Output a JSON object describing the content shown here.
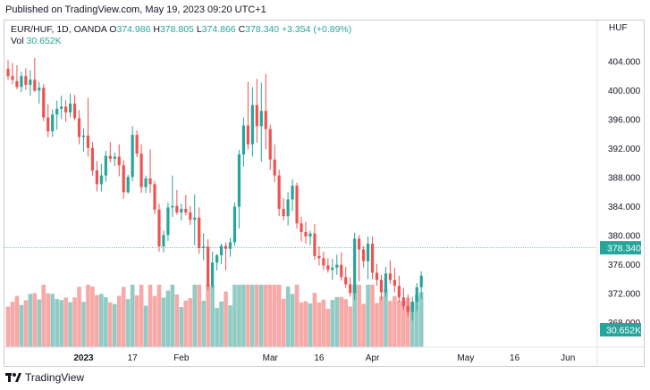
{
  "header": {
    "published": "Published on TradingView.com, May 19, 2023 09:20 UTC+1"
  },
  "legend": {
    "symbol": "EUR/HUF, 1D, OANDA",
    "o_label": "O",
    "o_value": "374.986",
    "h_label": "H",
    "h_value": "378.805",
    "l_label": "L",
    "l_value": "374.866",
    "c_label": "C",
    "c_value": "378.340",
    "change": "+3.354 (+0.89%)",
    "vol_label": "Vol",
    "vol_value": "30.652K"
  },
  "footer": {
    "brand": "TradingView"
  },
  "colors": {
    "up": "#26a69a",
    "down": "#ef5350",
    "vol_up": "#91cbc4",
    "vol_down": "#f6a9a7",
    "price_line": "#26a69a"
  },
  "chart_data": {
    "type": "candlestick",
    "currency_label": "HUF",
    "y_ticks": [
      "404.000",
      "400.000",
      "396.000",
      "392.000",
      "388.000",
      "384.000",
      "380.000",
      "376.000",
      "372.000",
      "368.000"
    ],
    "ylim": [
      364,
      406
    ],
    "x_ticks": [
      {
        "index": 17,
        "label": "2023"
      },
      {
        "index": 28,
        "label": "17"
      },
      {
        "index": 39,
        "label": "Feb"
      },
      {
        "index": 59,
        "label": "Mar"
      },
      {
        "index": 70,
        "label": "16"
      },
      {
        "index": 82,
        "label": "Apr"
      },
      {
        "index": 103,
        "label": "May"
      },
      {
        "index": 114,
        "label": "16"
      },
      {
        "index": 126,
        "label": "Jun"
      }
    ],
    "last_price": "378.340",
    "last_volume": "30.652K",
    "candles": [
      {
        "o": 403.0,
        "h": 404.2,
        "l": 401.5,
        "c": 402.0
      },
      {
        "o": 402.0,
        "h": 403.8,
        "l": 400.9,
        "c": 401.5
      },
      {
        "o": 401.3,
        "h": 403.5,
        "l": 400.2,
        "c": 400.5
      },
      {
        "o": 400.5,
        "h": 402.6,
        "l": 399.8,
        "c": 402.0
      },
      {
        "o": 402.0,
        "h": 403.1,
        "l": 400.1,
        "c": 400.8
      },
      {
        "o": 400.8,
        "h": 402.8,
        "l": 399.3,
        "c": 401.5
      },
      {
        "o": 401.5,
        "h": 404.5,
        "l": 399.8,
        "c": 400.0
      },
      {
        "o": 400.0,
        "h": 401.2,
        "l": 398.2,
        "c": 400.4
      },
      {
        "o": 400.4,
        "h": 400.9,
        "l": 395.8,
        "c": 396.3
      },
      {
        "o": 396.3,
        "h": 398.1,
        "l": 393.6,
        "c": 394.4
      },
      {
        "o": 394.4,
        "h": 397.4,
        "l": 393.6,
        "c": 396.7
      },
      {
        "o": 396.7,
        "h": 398.6,
        "l": 394.6,
        "c": 397.5
      },
      {
        "o": 397.5,
        "h": 399.3,
        "l": 396.1,
        "c": 397.8
      },
      {
        "o": 397.8,
        "h": 398.7,
        "l": 395.7,
        "c": 397.0
      },
      {
        "o": 397.0,
        "h": 399.6,
        "l": 396.3,
        "c": 398.2
      },
      {
        "o": 398.2,
        "h": 399.4,
        "l": 395.9,
        "c": 396.2
      },
      {
        "o": 396.2,
        "h": 397.3,
        "l": 392.6,
        "c": 393.6
      },
      {
        "o": 393.6,
        "h": 394.8,
        "l": 391.6,
        "c": 393.8
      },
      {
        "o": 393.8,
        "h": 399.0,
        "l": 390.9,
        "c": 392.1
      },
      {
        "o": 392.1,
        "h": 392.9,
        "l": 388.3,
        "c": 389.0
      },
      {
        "o": 389.0,
        "h": 390.3,
        "l": 386.1,
        "c": 387.1
      },
      {
        "o": 387.1,
        "h": 389.9,
        "l": 386.1,
        "c": 388.3
      },
      {
        "o": 388.3,
        "h": 391.7,
        "l": 387.4,
        "c": 391.0
      },
      {
        "o": 391.0,
        "h": 392.9,
        "l": 390.1,
        "c": 390.6
      },
      {
        "o": 390.6,
        "h": 391.5,
        "l": 389.6,
        "c": 390.9
      },
      {
        "o": 390.9,
        "h": 392.6,
        "l": 388.2,
        "c": 389.7
      },
      {
        "o": 389.7,
        "h": 390.4,
        "l": 385.1,
        "c": 386.0
      },
      {
        "o": 386.0,
        "h": 388.4,
        "l": 385.8,
        "c": 388.1
      },
      {
        "o": 388.1,
        "h": 395.1,
        "l": 387.5,
        "c": 393.9
      },
      {
        "o": 393.9,
        "h": 394.5,
        "l": 390.8,
        "c": 391.3
      },
      {
        "o": 391.3,
        "h": 392.6,
        "l": 385.9,
        "c": 386.7
      },
      {
        "o": 386.7,
        "h": 388.3,
        "l": 385.9,
        "c": 387.9
      },
      {
        "o": 387.9,
        "h": 391.9,
        "l": 385.9,
        "c": 387.1
      },
      {
        "o": 387.1,
        "h": 387.5,
        "l": 383.0,
        "c": 383.6
      },
      {
        "o": 383.6,
        "h": 384.4,
        "l": 377.8,
        "c": 378.5
      },
      {
        "o": 378.5,
        "h": 380.7,
        "l": 377.7,
        "c": 380.1
      },
      {
        "o": 380.1,
        "h": 384.6,
        "l": 379.3,
        "c": 383.9
      },
      {
        "o": 383.9,
        "h": 388.3,
        "l": 382.6,
        "c": 384.1
      },
      {
        "o": 384.1,
        "h": 386.3,
        "l": 382.9,
        "c": 383.2
      },
      {
        "o": 383.2,
        "h": 384.4,
        "l": 382.1,
        "c": 383.7
      },
      {
        "o": 383.7,
        "h": 385.6,
        "l": 382.8,
        "c": 383.2
      },
      {
        "o": 383.2,
        "h": 384.1,
        "l": 381.5,
        "c": 382.2
      },
      {
        "o": 382.2,
        "h": 385.7,
        "l": 378.7,
        "c": 382.5
      },
      {
        "o": 382.5,
        "h": 383.9,
        "l": 377.5,
        "c": 378.3
      },
      {
        "o": 378.3,
        "h": 380.3,
        "l": 376.6,
        "c": 378.5
      },
      {
        "o": 378.5,
        "h": 379.5,
        "l": 372.5,
        "c": 373.0
      },
      {
        "o": 373.0,
        "h": 377.8,
        "l": 372.8,
        "c": 376.3
      },
      {
        "o": 376.3,
        "h": 377.5,
        "l": 375.2,
        "c": 377.3
      },
      {
        "o": 377.3,
        "h": 378.9,
        "l": 376.1,
        "c": 378.6
      },
      {
        "o": 378.6,
        "h": 379.1,
        "l": 375.2,
        "c": 378.2
      },
      {
        "o": 378.2,
        "h": 379.7,
        "l": 377.1,
        "c": 379.1
      },
      {
        "o": 379.1,
        "h": 384.6,
        "l": 378.6,
        "c": 384.0
      },
      {
        "o": 384.0,
        "h": 391.8,
        "l": 381.0,
        "c": 391.2
      },
      {
        "o": 391.2,
        "h": 396.3,
        "l": 389.5,
        "c": 395.2
      },
      {
        "o": 395.2,
        "h": 401.2,
        "l": 391.9,
        "c": 392.6
      },
      {
        "o": 392.6,
        "h": 400.5,
        "l": 390.9,
        "c": 398.0
      },
      {
        "o": 398.0,
        "h": 401.6,
        "l": 392.8,
        "c": 395.1
      },
      {
        "o": 395.1,
        "h": 401.1,
        "l": 390.2,
        "c": 397.2
      },
      {
        "o": 397.2,
        "h": 402.3,
        "l": 391.9,
        "c": 394.7
      },
      {
        "o": 394.7,
        "h": 395.3,
        "l": 389.1,
        "c": 390.5
      },
      {
        "o": 390.5,
        "h": 392.6,
        "l": 387.4,
        "c": 388.3
      },
      {
        "o": 388.3,
        "h": 389.1,
        "l": 382.7,
        "c": 383.7
      },
      {
        "o": 383.7,
        "h": 385.2,
        "l": 382.1,
        "c": 382.7
      },
      {
        "o": 382.7,
        "h": 386.0,
        "l": 381.4,
        "c": 385.0
      },
      {
        "o": 385.0,
        "h": 387.8,
        "l": 383.4,
        "c": 386.9
      },
      {
        "o": 386.9,
        "h": 387.3,
        "l": 381.0,
        "c": 381.7
      },
      {
        "o": 381.7,
        "h": 382.6,
        "l": 379.2,
        "c": 380.5
      },
      {
        "o": 380.5,
        "h": 381.9,
        "l": 378.9,
        "c": 379.9
      },
      {
        "o": 379.9,
        "h": 380.7,
        "l": 378.7,
        "c": 380.3
      },
      {
        "o": 380.3,
        "h": 381.6,
        "l": 376.7,
        "c": 377.2
      },
      {
        "o": 377.2,
        "h": 378.5,
        "l": 375.9,
        "c": 376.9
      },
      {
        "o": 376.9,
        "h": 377.8,
        "l": 375.3,
        "c": 375.9
      },
      {
        "o": 375.9,
        "h": 376.9,
        "l": 374.9,
        "c": 375.3
      },
      {
        "o": 375.3,
        "h": 376.8,
        "l": 373.9,
        "c": 375.6
      },
      {
        "o": 375.6,
        "h": 377.4,
        "l": 374.6,
        "c": 376.0
      },
      {
        "o": 376.0,
        "h": 377.7,
        "l": 373.8,
        "c": 374.3
      },
      {
        "o": 374.3,
        "h": 375.7,
        "l": 372.8,
        "c": 373.3
      },
      {
        "o": 373.3,
        "h": 374.3,
        "l": 371.6,
        "c": 372.1
      },
      {
        "o": 372.1,
        "h": 380.4,
        "l": 371.2,
        "c": 379.6
      },
      {
        "o": 379.6,
        "h": 380.1,
        "l": 373.7,
        "c": 378.1
      },
      {
        "o": 378.1,
        "h": 378.6,
        "l": 375.6,
        "c": 376.5
      },
      {
        "o": 376.5,
        "h": 379.9,
        "l": 374.0,
        "c": 378.9
      },
      {
        "o": 378.9,
        "h": 379.9,
        "l": 374.0,
        "c": 374.9
      },
      {
        "o": 374.9,
        "h": 376.1,
        "l": 373.1,
        "c": 373.9
      },
      {
        "o": 373.9,
        "h": 374.6,
        "l": 371.1,
        "c": 372.2
      },
      {
        "o": 372.2,
        "h": 375.7,
        "l": 371.6,
        "c": 374.8
      },
      {
        "o": 374.8,
        "h": 376.6,
        "l": 373.4,
        "c": 373.9
      },
      {
        "o": 373.9,
        "h": 375.6,
        "l": 372.2,
        "c": 373.1
      },
      {
        "o": 373.1,
        "h": 374.5,
        "l": 370.8,
        "c": 371.5
      },
      {
        "o": 371.5,
        "h": 372.8,
        "l": 369.8,
        "c": 370.3
      },
      {
        "o": 370.3,
        "h": 371.9,
        "l": 368.9,
        "c": 369.5
      },
      {
        "o": 369.5,
        "h": 371.6,
        "l": 368.3,
        "c": 370.9
      },
      {
        "o": 370.9,
        "h": 373.5,
        "l": 369.6,
        "c": 372.9
      },
      {
        "o": 372.9,
        "h": 375.1,
        "l": 371.3,
        "c": 374.5
      }
    ]
  }
}
